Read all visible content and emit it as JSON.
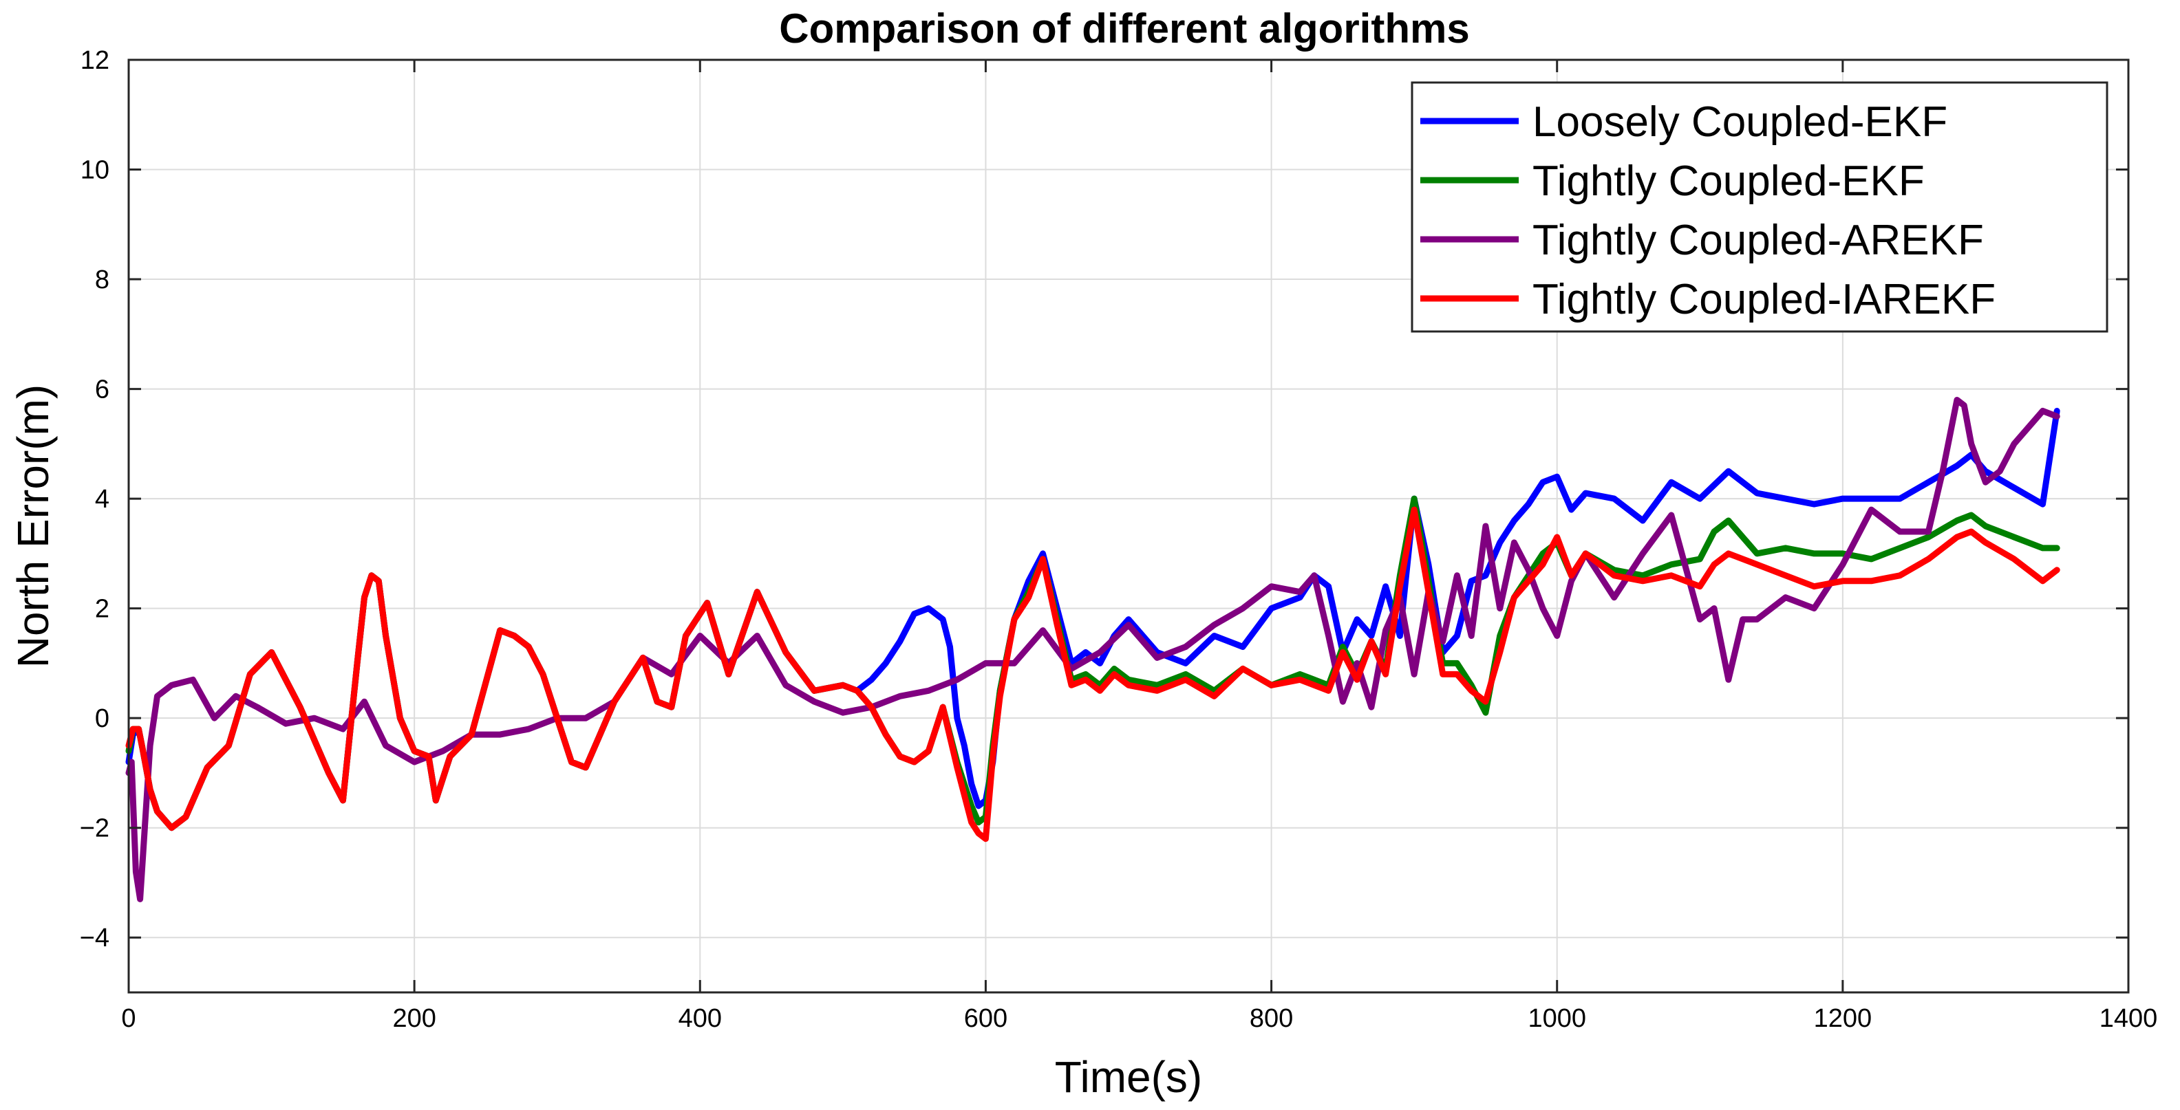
{
  "chart_data": {
    "type": "line",
    "title": "Comparison of different algorithms",
    "xlabel": "Time(s)",
    "ylabel": "North Error(m)",
    "xlim": [
      0,
      1400
    ],
    "ylim": [
      -5,
      12
    ],
    "xticks": [
      0,
      200,
      400,
      600,
      800,
      1000,
      1200,
      1400
    ],
    "yticks": [
      -4,
      -2,
      0,
      2,
      4,
      6,
      8,
      10,
      12
    ],
    "grid": true,
    "legend": "top-right",
    "series": [
      {
        "name": "Loosely Coupled-EKF",
        "color": "#0000ff",
        "x": [
          0,
          3,
          7,
          10,
          15,
          20,
          30,
          40,
          55,
          70,
          85,
          100,
          120,
          140,
          150,
          160,
          165,
          170,
          175,
          180,
          190,
          200,
          210,
          215,
          225,
          240,
          260,
          270,
          280,
          290,
          300,
          310,
          320,
          330,
          340,
          360,
          370,
          380,
          390,
          400,
          405,
          420,
          440,
          460,
          480,
          500,
          510,
          520,
          530,
          540,
          550,
          560,
          570,
          575,
          580,
          585,
          590,
          595,
          600,
          605,
          610,
          620,
          630,
          640,
          650,
          660,
          670,
          680,
          690,
          700,
          720,
          740,
          760,
          780,
          800,
          820,
          830,
          840,
          850,
          860,
          870,
          880,
          890,
          900,
          910,
          920,
          930,
          940,
          950,
          960,
          970,
          980,
          990,
          1000,
          1010,
          1020,
          1040,
          1060,
          1080,
          1100,
          1120,
          1140,
          1160,
          1180,
          1200,
          1220,
          1240,
          1260,
          1280,
          1290,
          1300,
          1320,
          1340,
          1350
        ],
        "y": [
          -0.8,
          -0.3,
          -0.2,
          -0.6,
          -1.3,
          -1.7,
          -2.0,
          -1.8,
          -0.9,
          -0.5,
          0.8,
          1.2,
          0.2,
          -1.0,
          -1.5,
          1.0,
          2.2,
          2.6,
          2.5,
          1.5,
          0.0,
          -0.6,
          -0.7,
          -1.5,
          -0.7,
          -0.3,
          1.6,
          1.5,
          1.3,
          0.8,
          0.0,
          -0.8,
          -0.9,
          -0.3,
          0.3,
          1.1,
          0.3,
          0.2,
          1.5,
          1.9,
          2.1,
          0.8,
          2.3,
          1.2,
          0.5,
          0.6,
          0.5,
          0.7,
          1.0,
          1.4,
          1.9,
          2.0,
          1.8,
          1.3,
          0.0,
          -0.5,
          -1.2,
          -1.6,
          -1.5,
          -0.8,
          0.5,
          1.8,
          2.5,
          3.0,
          2.0,
          1.0,
          1.2,
          1.0,
          1.5,
          1.8,
          1.2,
          1.0,
          1.5,
          1.3,
          2.0,
          2.2,
          2.6,
          2.4,
          1.2,
          1.8,
          1.5,
          2.4,
          1.5,
          4.0,
          2.8,
          1.2,
          1.5,
          2.5,
          2.6,
          3.2,
          3.6,
          3.9,
          4.3,
          4.4,
          3.8,
          4.1,
          4.0,
          3.6,
          4.3,
          4.0,
          4.5,
          4.1,
          4.0,
          3.9,
          4.0,
          4.0,
          4.0,
          4.3,
          4.6,
          4.8,
          4.5,
          4.2,
          3.9,
          5.6
        ]
      },
      {
        "name": "Tightly Coupled-EKF",
        "color": "#008000",
        "x": [
          0,
          3,
          7,
          10,
          15,
          20,
          30,
          40,
          55,
          70,
          85,
          100,
          120,
          140,
          150,
          160,
          165,
          170,
          175,
          180,
          190,
          200,
          210,
          215,
          225,
          240,
          260,
          270,
          280,
          290,
          300,
          310,
          320,
          330,
          340,
          360,
          370,
          380,
          390,
          400,
          405,
          420,
          440,
          460,
          480,
          500,
          510,
          520,
          530,
          540,
          550,
          560,
          570,
          580,
          590,
          595,
          600,
          605,
          610,
          620,
          630,
          640,
          650,
          660,
          670,
          680,
          690,
          700,
          720,
          740,
          760,
          780,
          800,
          820,
          840,
          850,
          860,
          870,
          880,
          890,
          900,
          910,
          920,
          930,
          940,
          950,
          960,
          970,
          990,
          1000,
          1010,
          1020,
          1040,
          1060,
          1080,
          1100,
          1110,
          1120,
          1140,
          1160,
          1180,
          1200,
          1220,
          1240,
          1260,
          1280,
          1290,
          1300,
          1320,
          1340,
          1350
        ],
        "y": [
          -0.6,
          -0.2,
          -0.2,
          -0.6,
          -1.3,
          -1.7,
          -2.0,
          -1.8,
          -0.9,
          -0.5,
          0.8,
          1.2,
          0.2,
          -1.0,
          -1.5,
          1.0,
          2.2,
          2.6,
          2.5,
          1.5,
          0.0,
          -0.6,
          -0.7,
          -1.5,
          -0.7,
          -0.3,
          1.6,
          1.5,
          1.3,
          0.8,
          0.0,
          -0.8,
          -0.9,
          -0.3,
          0.3,
          1.1,
          0.3,
          0.2,
          1.5,
          1.9,
          2.1,
          0.8,
          2.3,
          1.2,
          0.5,
          0.6,
          0.5,
          0.2,
          -0.3,
          -0.7,
          -0.8,
          -0.6,
          0.2,
          -0.8,
          -1.6,
          -1.9,
          -1.8,
          -0.5,
          0.5,
          1.8,
          2.3,
          2.9,
          1.8,
          0.7,
          0.8,
          0.6,
          0.9,
          0.7,
          0.6,
          0.8,
          0.5,
          0.9,
          0.6,
          0.8,
          0.6,
          1.3,
          0.8,
          1.4,
          0.9,
          2.6,
          4.0,
          2.5,
          1.0,
          1.0,
          0.6,
          0.1,
          1.5,
          2.2,
          3.0,
          3.2,
          2.6,
          3.0,
          2.7,
          2.6,
          2.8,
          2.9,
          3.4,
          3.6,
          3.0,
          3.1,
          3.0,
          3.0,
          2.9,
          3.1,
          3.3,
          3.6,
          3.7,
          3.5,
          3.3,
          3.1,
          3.1
        ]
      },
      {
        "name": "Tightly Coupled-AREKF",
        "color": "#800080",
        "x": [
          0,
          2,
          5,
          8,
          10,
          15,
          20,
          30,
          45,
          60,
          75,
          90,
          110,
          130,
          150,
          165,
          180,
          200,
          220,
          240,
          260,
          280,
          300,
          320,
          340,
          360,
          380,
          400,
          420,
          440,
          460,
          480,
          500,
          520,
          540,
          560,
          580,
          600,
          620,
          640,
          660,
          680,
          700,
          720,
          740,
          760,
          780,
          800,
          820,
          830,
          840,
          850,
          860,
          870,
          880,
          890,
          900,
          910,
          920,
          930,
          940,
          950,
          960,
          970,
          980,
          990,
          1000,
          1010,
          1020,
          1040,
          1060,
          1080,
          1100,
          1110,
          1120,
          1130,
          1140,
          1160,
          1180,
          1200,
          1220,
          1240,
          1260,
          1270,
          1280,
          1285,
          1290,
          1300,
          1310,
          1320,
          1340,
          1350
        ],
        "y": [
          -1.0,
          -0.8,
          -2.8,
          -3.3,
          -2.5,
          -0.5,
          0.4,
          0.6,
          0.7,
          0.0,
          0.4,
          0.2,
          -0.1,
          0.0,
          -0.2,
          0.3,
          -0.5,
          -0.8,
          -0.6,
          -0.3,
          -0.3,
          -0.2,
          0.0,
          0.0,
          0.3,
          1.1,
          0.8,
          1.5,
          1.0,
          1.5,
          0.6,
          0.3,
          0.1,
          0.2,
          0.4,
          0.5,
          0.7,
          1.0,
          1.0,
          1.6,
          0.9,
          1.2,
          1.7,
          1.1,
          1.3,
          1.7,
          2.0,
          2.4,
          2.3,
          2.6,
          1.5,
          0.3,
          1.0,
          0.2,
          1.6,
          2.2,
          0.8,
          2.3,
          1.4,
          2.6,
          1.5,
          3.5,
          2.0,
          3.2,
          2.7,
          2.0,
          1.5,
          2.5,
          3.0,
          2.2,
          3.0,
          3.7,
          1.8,
          2.0,
          0.7,
          1.8,
          1.8,
          2.2,
          2.0,
          2.8,
          3.8,
          3.4,
          3.4,
          4.5,
          5.8,
          5.7,
          5.0,
          4.3,
          4.5,
          5.0,
          5.6,
          5.5
        ]
      },
      {
        "name": "Tightly Coupled-IAREKF",
        "color": "#ff0000",
        "x": [
          0,
          3,
          7,
          10,
          15,
          20,
          30,
          40,
          55,
          70,
          85,
          100,
          120,
          140,
          150,
          160,
          165,
          170,
          175,
          180,
          190,
          200,
          210,
          215,
          225,
          240,
          260,
          270,
          280,
          290,
          300,
          310,
          320,
          330,
          340,
          360,
          370,
          380,
          390,
          400,
          405,
          420,
          440,
          460,
          480,
          500,
          510,
          520,
          530,
          540,
          550,
          560,
          570,
          580,
          590,
          595,
          600,
          605,
          610,
          620,
          630,
          640,
          650,
          660,
          670,
          680,
          690,
          700,
          720,
          740,
          760,
          780,
          800,
          820,
          840,
          850,
          860,
          870,
          880,
          890,
          900,
          910,
          920,
          930,
          940,
          950,
          960,
          970,
          990,
          1000,
          1010,
          1020,
          1040,
          1060,
          1080,
          1100,
          1110,
          1120,
          1140,
          1160,
          1180,
          1200,
          1220,
          1240,
          1260,
          1280,
          1290,
          1300,
          1320,
          1340,
          1350
        ],
        "y": [
          -0.5,
          -0.2,
          -0.2,
          -0.6,
          -1.3,
          -1.7,
          -2.0,
          -1.8,
          -0.9,
          -0.5,
          0.8,
          1.2,
          0.2,
          -1.0,
          -1.5,
          1.0,
          2.2,
          2.6,
          2.5,
          1.5,
          0.0,
          -0.6,
          -0.7,
          -1.5,
          -0.7,
          -0.3,
          1.6,
          1.5,
          1.3,
          0.8,
          0.0,
          -0.8,
          -0.9,
          -0.3,
          0.3,
          1.1,
          0.3,
          0.2,
          1.5,
          1.9,
          2.1,
          0.8,
          2.3,
          1.2,
          0.5,
          0.6,
          0.5,
          0.2,
          -0.3,
          -0.7,
          -0.8,
          -0.6,
          0.2,
          -0.9,
          -1.9,
          -2.1,
          -2.2,
          -0.7,
          0.4,
          1.8,
          2.2,
          2.9,
          1.7,
          0.6,
          0.7,
          0.5,
          0.8,
          0.6,
          0.5,
          0.7,
          0.4,
          0.9,
          0.6,
          0.7,
          0.5,
          1.2,
          0.7,
          1.4,
          0.8,
          2.4,
          3.8,
          2.3,
          0.8,
          0.8,
          0.5,
          0.3,
          1.2,
          2.2,
          2.8,
          3.3,
          2.6,
          3.0,
          2.6,
          2.5,
          2.6,
          2.4,
          2.8,
          3.0,
          2.8,
          2.6,
          2.4,
          2.5,
          2.5,
          2.6,
          2.9,
          3.3,
          3.4,
          3.2,
          2.9,
          2.5,
          2.7
        ]
      }
    ]
  }
}
